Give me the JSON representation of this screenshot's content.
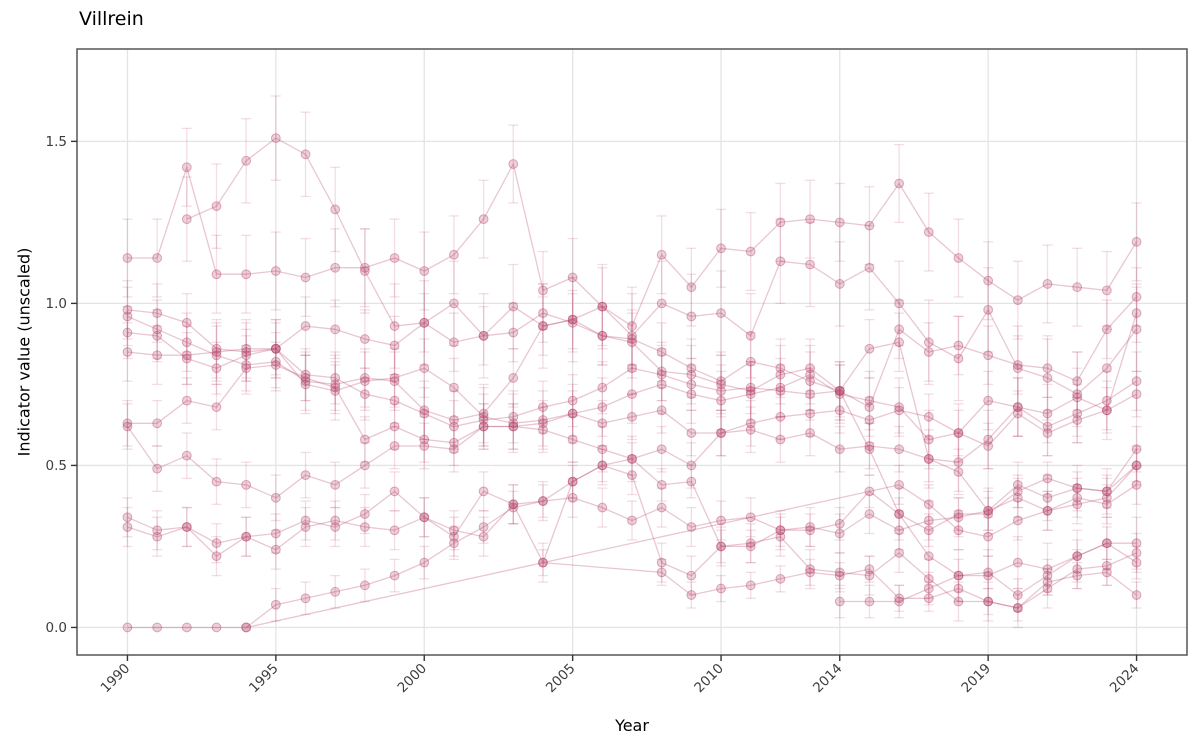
{
  "chart_data": {
    "type": "line",
    "title": "Villrein",
    "xlabel": "Year",
    "ylabel": "Indicator value (unscaled)",
    "legend": "none",
    "grid": true,
    "marker": "open-circle",
    "error_bars": true,
    "xlim": [
      1988.3,
      2025.7
    ],
    "ylim": [
      -0.085,
      1.785
    ],
    "x_ticks": {
      "values": [
        1990,
        1995,
        2000,
        2005,
        2010,
        2014,
        2019,
        2024
      ],
      "labels": [
        "1990",
        "1995",
        "2000",
        "2005",
        "2010",
        "2014",
        "2019",
        "2024"
      ]
    },
    "y_ticks": {
      "values": [
        0,
        0.5,
        1.0,
        1.5
      ],
      "labels": [
        "0.0",
        "0.5",
        "1.0",
        "1.5"
      ]
    },
    "colors": {
      "series": "#b5426b",
      "grid": "#e4e4e4",
      "panel_border": "#555555",
      "tick": "#333333",
      "tick_label": "#3d3d3d",
      "title": "#000000"
    },
    "alphas": {
      "point_fill": 0.25,
      "point_stroke": 0.42,
      "line": 0.3,
      "error": 0.18
    },
    "years": [
      1990,
      1991,
      1992,
      1993,
      1994,
      1995,
      1996,
      1997,
      1998,
      1999,
      2000,
      2001,
      2002,
      2003,
      2004,
      2005,
      2006,
      2007,
      2008,
      2009,
      2010,
      2011,
      2012,
      2013,
      2014,
      2015,
      2016,
      2017,
      2018,
      2019,
      2020,
      2021,
      2022,
      2023,
      2024
    ],
    "series": [
      {
        "name": "series-01",
        "err": 0.12,
        "values": [
          1.14,
          1.14,
          1.42,
          1.09,
          1.09,
          1.1,
          1.08,
          1.11,
          1.11,
          1.14,
          1.1,
          1.15,
          1.26,
          1.43,
          1.04,
          1.08,
          0.99,
          0.93,
          1.15,
          1.05,
          1.17,
          1.16,
          1.25,
          1.26,
          1.25,
          1.24,
          1.37,
          1.22,
          1.14,
          1.07,
          1.01,
          1.06,
          1.05,
          1.04,
          1.19
        ]
      },
      {
        "name": "series-02",
        "err": 0.13,
        "values": [
          null,
          null,
          1.26,
          1.3,
          1.44,
          1.51,
          1.46,
          1.29,
          1.1,
          0.93,
          0.94,
          1.0,
          0.9,
          0.99,
          0.93,
          0.95,
          0.99,
          0.9,
          1.0,
          0.96,
          0.97,
          0.9,
          1.13,
          1.12,
          1.06,
          1.11,
          1.0,
          0.88,
          0.83,
          0.98,
          0.8,
          0.77,
          0.72,
          0.8,
          0.92
        ]
      },
      {
        "name": "series-03",
        "err": 0.09,
        "values": [
          0.98,
          0.97,
          0.94,
          0.86,
          0.85,
          0.86,
          0.93,
          0.92,
          0.89,
          0.87,
          0.94,
          0.88,
          0.9,
          0.91,
          0.97,
          0.94,
          0.9,
          0.88,
          0.79,
          0.78,
          0.75,
          0.73,
          0.78,
          0.8,
          0.73,
          0.68,
          0.92,
          0.85,
          0.87,
          0.84,
          0.81,
          0.8,
          0.76,
          0.92,
          1.02
        ]
      },
      {
        "name": "series-04",
        "err": 0.09,
        "values": [
          0.96,
          0.92,
          0.88,
          0.84,
          0.81,
          0.82,
          0.76,
          0.75,
          0.77,
          0.76,
          0.67,
          0.64,
          0.66,
          0.77,
          0.93,
          0.95,
          0.9,
          0.89,
          0.85,
          0.8,
          0.76,
          0.82,
          0.8,
          0.76,
          0.73,
          0.86,
          0.88,
          0.52,
          0.51,
          0.58,
          0.68,
          0.66,
          0.71,
          0.67,
          0.97
        ]
      },
      {
        "name": "series-05",
        "err": 0.08,
        "values": [
          0.91,
          0.9,
          0.83,
          0.8,
          0.84,
          0.86,
          0.78,
          0.77,
          0.72,
          0.7,
          0.66,
          0.62,
          0.64,
          0.65,
          0.68,
          0.7,
          0.74,
          0.8,
          0.78,
          0.75,
          0.73,
          0.74,
          0.73,
          0.72,
          0.73,
          0.55,
          0.35,
          0.22,
          0.16,
          0.16,
          0.2,
          0.18,
          0.22,
          0.26,
          0.26
        ]
      },
      {
        "name": "series-06",
        "err": 0.09,
        "values": [
          0.85,
          0.84,
          0.84,
          0.85,
          0.86,
          0.86,
          0.75,
          0.73,
          0.76,
          0.77,
          0.8,
          0.74,
          0.65,
          0.63,
          0.64,
          0.66,
          0.68,
          0.72,
          0.75,
          0.72,
          0.7,
          0.72,
          0.74,
          0.78,
          0.72,
          0.7,
          0.68,
          0.58,
          0.6,
          0.7,
          0.68,
          0.62,
          0.66,
          0.7,
          0.76
        ]
      },
      {
        "name": "series-07",
        "err": 0.07,
        "values": [
          0.63,
          0.63,
          0.7,
          0.68,
          0.8,
          0.81,
          0.77,
          0.74,
          0.58,
          0.62,
          0.58,
          0.57,
          0.62,
          0.62,
          0.63,
          0.66,
          0.63,
          0.65,
          0.67,
          0.6,
          0.6,
          0.63,
          0.65,
          0.66,
          0.67,
          0.64,
          0.67,
          0.65,
          0.6,
          0.56,
          0.66,
          0.6,
          0.64,
          0.67,
          0.72
        ]
      },
      {
        "name": "series-08",
        "err": 0.07,
        "values": [
          0.62,
          0.49,
          0.53,
          0.45,
          0.44,
          0.4,
          0.47,
          0.44,
          0.5,
          0.56,
          0.56,
          0.55,
          0.62,
          0.62,
          0.61,
          0.58,
          0.55,
          0.52,
          0.55,
          0.5,
          0.6,
          0.61,
          0.58,
          0.6,
          0.55,
          0.56,
          0.55,
          0.52,
          0.48,
          0.36,
          0.44,
          0.4,
          0.43,
          0.42,
          0.55
        ]
      },
      {
        "name": "series-09",
        "err": 0.06,
        "values": [
          0.34,
          0.3,
          0.31,
          0.22,
          0.28,
          0.29,
          0.33,
          0.31,
          0.35,
          0.42,
          0.34,
          0.28,
          0.42,
          0.38,
          0.39,
          0.4,
          0.37,
          0.33,
          0.37,
          0.31,
          0.33,
          0.34,
          0.3,
          0.31,
          0.29,
          0.35,
          0.3,
          0.33,
          0.34,
          0.36,
          0.4,
          0.36,
          0.4,
          0.38,
          0.44
        ]
      },
      {
        "name": "series-10",
        "err": 0.06,
        "values": [
          0.31,
          0.28,
          0.31,
          0.26,
          0.28,
          0.24,
          0.31,
          0.33,
          0.31,
          0.3,
          0.34,
          0.3,
          0.28,
          0.38,
          0.2,
          0.45,
          0.5,
          0.47,
          0.2,
          0.16,
          0.25,
          0.26,
          0.28,
          0.18,
          0.17,
          0.16,
          0.23,
          0.15,
          0.08,
          0.08,
          0.06,
          0.12,
          0.18,
          0.19,
          0.23
        ]
      },
      {
        "name": "series-11",
        "err": 0.05,
        "values": [
          0.0,
          0.0,
          0.0,
          0.0,
          0.0,
          0.07,
          0.09,
          0.11,
          0.13,
          0.16,
          0.2,
          0.26,
          0.31,
          0.37,
          0.39,
          0.45,
          0.5,
          0.52,
          0.44,
          0.45,
          0.25,
          0.25,
          0.3,
          0.3,
          0.32,
          0.42,
          0.35,
          0.3,
          0.35,
          0.35,
          0.42,
          0.46,
          0.43,
          0.42,
          0.5
        ]
      },
      {
        "name": "series-12",
        "err": 0.06,
        "values": [
          null,
          null,
          null,
          null,
          0.0,
          null,
          null,
          null,
          null,
          null,
          null,
          null,
          null,
          null,
          null,
          null,
          null,
          null,
          null,
          null,
          null,
          null,
          null,
          null,
          null,
          null,
          0.44,
          0.38,
          0.3,
          0.28,
          0.33,
          0.36,
          0.38,
          0.4,
          0.5
        ]
      },
      {
        "name": "series-13",
        "err": 0.04,
        "values": [
          null,
          null,
          null,
          null,
          null,
          null,
          null,
          null,
          null,
          null,
          null,
          null,
          null,
          null,
          0.2,
          null,
          null,
          null,
          0.17,
          0.1,
          0.12,
          0.13,
          0.15,
          0.17,
          0.16,
          0.18,
          0.09,
          0.09,
          0.12,
          0.08,
          0.06,
          0.14,
          0.16,
          0.17,
          0.1
        ]
      },
      {
        "name": "series-14",
        "err": 0.05,
        "values": [
          null,
          null,
          null,
          null,
          null,
          null,
          null,
          null,
          null,
          null,
          null,
          null,
          null,
          null,
          null,
          null,
          null,
          null,
          null,
          null,
          null,
          null,
          null,
          null,
          0.08,
          0.08,
          0.08,
          0.12,
          0.16,
          0.17,
          0.1,
          0.16,
          0.22,
          0.26,
          0.2
        ]
      }
    ]
  }
}
